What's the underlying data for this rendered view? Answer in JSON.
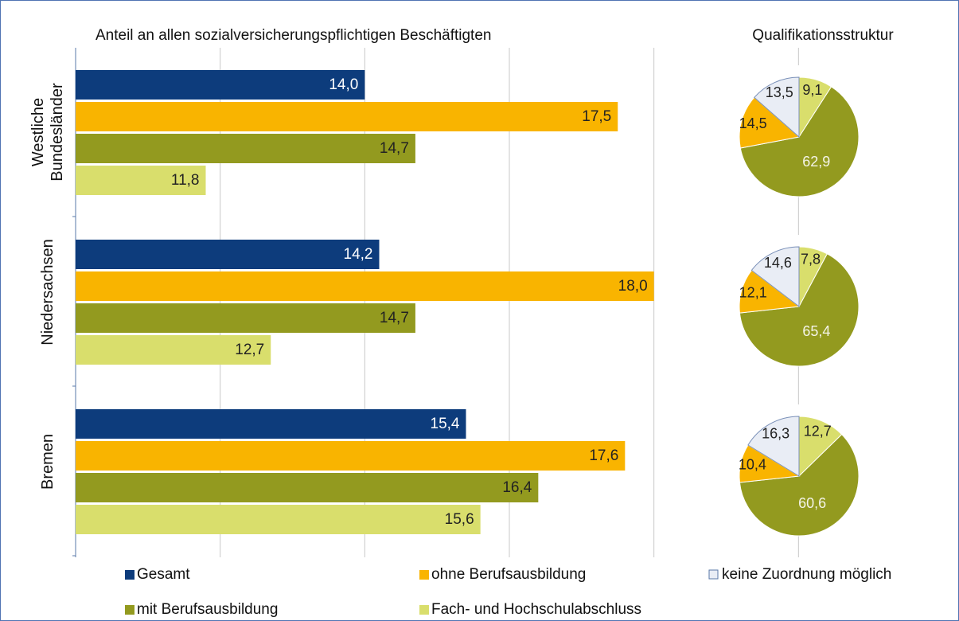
{
  "chart_data": [
    {
      "type": "bar",
      "orientation": "horizontal",
      "title": "Anteil an allen sozialversicherungspflichtigen Beschäftigten",
      "categories": [
        "Westliche Bundesländer",
        "Niedersachsen",
        "Bremen"
      ],
      "series": [
        {
          "name": "Gesamt",
          "color": "#0d3c7c",
          "values": [
            14.0,
            14.2,
            15.4
          ],
          "value_labels": [
            "14,0",
            "14,2",
            "15,4"
          ]
        },
        {
          "name": "ohne Berufsausbildung",
          "color": "#f9b400",
          "values": [
            17.5,
            18.0,
            17.6
          ],
          "value_labels": [
            "17,5",
            "18,0",
            "17,6"
          ]
        },
        {
          "name": "mit Berufsausbildung",
          "color": "#939a1f",
          "values": [
            14.7,
            14.7,
            16.4
          ],
          "value_labels": [
            "14,7",
            "14,7",
            "16,4"
          ]
        },
        {
          "name": "Fach- und Hochschulabschluss",
          "color": "#d9de6c",
          "values": [
            11.8,
            12.7,
            15.6
          ],
          "value_labels": [
            "11,8",
            "12,7",
            "15,6"
          ]
        }
      ],
      "xlim": [
        10,
        22
      ],
      "xticks": [
        12,
        14,
        16,
        18,
        20
      ],
      "grid": true
    },
    {
      "type": "pie",
      "title": "Qualifikationsstruktur",
      "categories": [
        "Fach- und Hochschulabschluss",
        "mit Berufsausbildung",
        "ohne Berufsausbildung",
        "keine Zuordnung möglich"
      ],
      "colors": [
        "#d9de6c",
        "#939a1f",
        "#f9b400",
        "#e9edf5"
      ],
      "series": [
        {
          "values": [
            9.1,
            62.9,
            14.5,
            13.5
          ],
          "value_labels": [
            "9,1",
            "62,9",
            "14,5",
            "13,5"
          ]
        },
        {
          "values": [
            7.8,
            65.4,
            12.1,
            14.6
          ],
          "value_labels": [
            "7,8",
            "65,4",
            "12,1",
            "14,6"
          ]
        },
        {
          "values": [
            12.7,
            60.6,
            10.4,
            16.3
          ],
          "value_labels": [
            "12,7",
            "60,6",
            "10,4",
            "16,3"
          ]
        }
      ]
    }
  ]
}
